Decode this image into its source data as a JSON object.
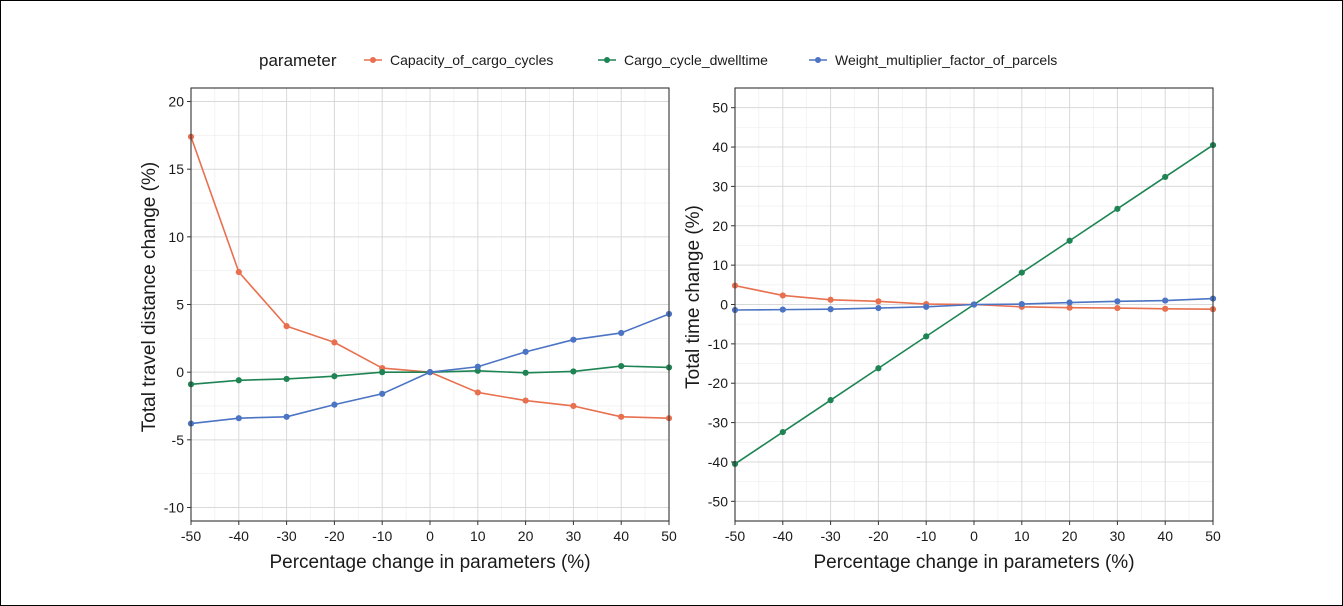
{
  "legend": {
    "title": "parameter",
    "items": [
      {
        "label": "Capacity_of_cargo_cycles",
        "color": "#E8704F"
      },
      {
        "label": "Cargo_cycle_dwelltime",
        "color": "#1E8454"
      },
      {
        "label": "Weight_multiplier_factor_of_parcels",
        "color": "#4C74C4"
      }
    ]
  },
  "chart_data": [
    {
      "type": "line",
      "xlabel": "Percentage change in parameters (%)",
      "ylabel": "Total travel distance change (%)",
      "xlim": [
        -50,
        50
      ],
      "ylim": [
        -11,
        21
      ],
      "x_ticks": [
        -50,
        -40,
        -30,
        -20,
        -10,
        0,
        10,
        20,
        30,
        40,
        50
      ],
      "y_ticks": [
        -10,
        -5,
        0,
        5,
        10,
        15,
        20
      ],
      "grid": true,
      "legend_position": "top",
      "x": [
        -50,
        -40,
        -30,
        -20,
        -10,
        0,
        10,
        20,
        30,
        40,
        50
      ],
      "series": [
        {
          "name": "Capacity_of_cargo_cycles",
          "color": "#E8704F",
          "values": [
            17.4,
            7.4,
            3.4,
            2.2,
            0.3,
            0.0,
            -1.5,
            -2.1,
            -2.5,
            -3.3,
            -3.4
          ]
        },
        {
          "name": "Cargo_cycle_dwelltime",
          "color": "#1E8454",
          "values": [
            -0.9,
            -0.6,
            -0.5,
            -0.3,
            0.0,
            0.0,
            0.1,
            -0.05,
            0.05,
            0.45,
            0.35
          ]
        },
        {
          "name": "Weight_multiplier_factor_of_parcels",
          "color": "#4C74C4",
          "values": [
            -3.8,
            -3.4,
            -3.3,
            -2.4,
            -1.6,
            0.0,
            0.4,
            1.5,
            2.4,
            2.9,
            4.3
          ]
        }
      ]
    },
    {
      "type": "line",
      "xlabel": "Percentage change in parameters (%)",
      "ylabel": "Total time change (%)",
      "xlim": [
        -50,
        50
      ],
      "ylim": [
        -55,
        55
      ],
      "x_ticks": [
        -50,
        -40,
        -30,
        -20,
        -10,
        0,
        10,
        20,
        30,
        40,
        50
      ],
      "y_ticks": [
        -50,
        -40,
        -30,
        -20,
        -10,
        0,
        10,
        20,
        30,
        40,
        50
      ],
      "grid": true,
      "legend_position": "top",
      "x": [
        -50,
        -40,
        -30,
        -20,
        -10,
        0,
        10,
        20,
        30,
        40,
        50
      ],
      "series": [
        {
          "name": "Capacity_of_cargo_cycles",
          "color": "#E8704F",
          "values": [
            4.8,
            2.3,
            1.2,
            0.8,
            0.1,
            0.0,
            -0.6,
            -0.8,
            -0.9,
            -1.1,
            -1.2
          ]
        },
        {
          "name": "Cargo_cycle_dwelltime",
          "color": "#1E8454",
          "values": [
            -40.5,
            -32.4,
            -24.3,
            -16.2,
            -8.1,
            0.0,
            8.1,
            16.2,
            24.3,
            32.4,
            40.5
          ]
        },
        {
          "name": "Weight_multiplier_factor_of_parcels",
          "color": "#4C74C4",
          "values": [
            -1.4,
            -1.3,
            -1.2,
            -0.9,
            -0.6,
            0.0,
            0.1,
            0.5,
            0.8,
            1.0,
            1.5
          ]
        }
      ]
    }
  ]
}
